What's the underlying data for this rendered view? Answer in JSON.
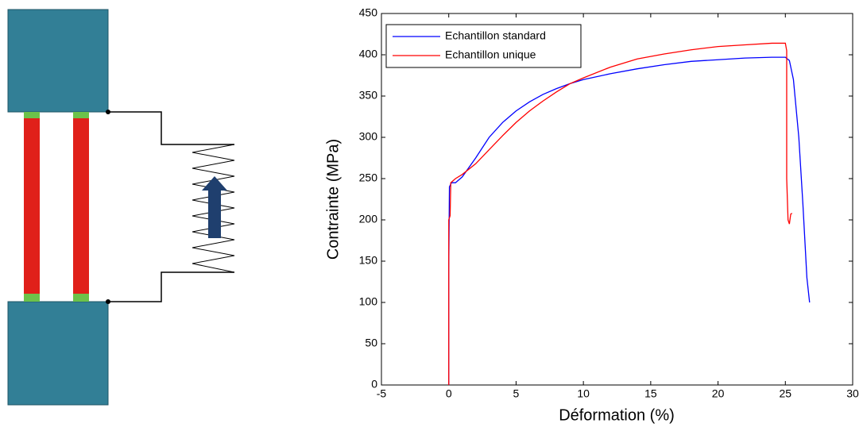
{
  "chart_data": {
    "type": "line",
    "x_label": "Déformation (%)",
    "y_label": "Contrainte (MPa)",
    "xlim": [
      -5,
      30
    ],
    "xticks": [
      -5,
      0,
      5,
      10,
      15,
      20,
      25,
      30
    ],
    "ylim": [
      0,
      450
    ],
    "yticks": [
      0,
      50,
      100,
      150,
      200,
      250,
      300,
      350,
      400,
      450
    ],
    "legend": "upper-left",
    "grid": false,
    "series": [
      {
        "name": "Echantillon standard",
        "color": "#0000ff",
        "x": [
          0,
          0,
          0.05,
          0.2,
          0.5,
          1,
          2,
          3,
          4,
          5,
          6,
          7,
          8,
          9,
          10,
          12,
          14,
          16,
          18,
          20,
          22,
          24,
          25,
          25.3,
          25.6,
          26,
          26.3,
          26.6,
          26.8
        ],
        "values": [
          0,
          140,
          240,
          245,
          245,
          252,
          275,
          300,
          318,
          332,
          343,
          352,
          359,
          365,
          370,
          377,
          383,
          388,
          392,
          394,
          396,
          397,
          397,
          393,
          370,
          300,
          220,
          130,
          100
        ]
      },
      {
        "name": "Echantillon unique",
        "color": "#ff0000",
        "x": [
          0,
          0,
          0.1,
          0.15,
          0.5,
          1,
          2,
          3,
          4,
          5,
          6,
          7,
          8,
          9,
          10,
          12,
          14,
          16,
          18,
          20,
          22,
          24,
          25,
          25.1,
          25.1,
          25.2,
          25.3,
          25.4,
          25.5
        ],
        "values": [
          0,
          200,
          205,
          245,
          250,
          255,
          268,
          285,
          302,
          318,
          332,
          344,
          355,
          365,
          372,
          385,
          395,
          401,
          406,
          410,
          412,
          414,
          414,
          405,
          250,
          200,
          195,
          207,
          208
        ]
      }
    ]
  }
}
